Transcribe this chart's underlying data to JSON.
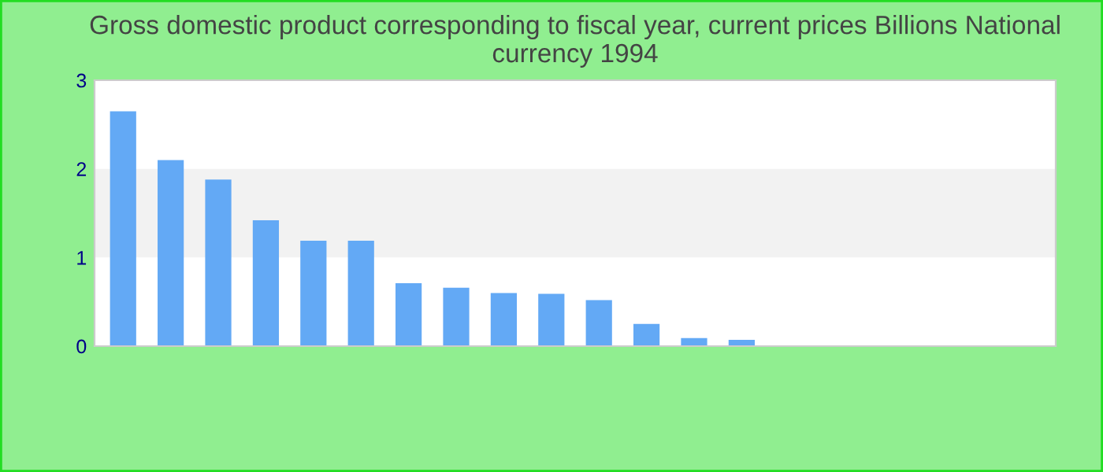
{
  "chart_data": {
    "type": "bar",
    "title": "Gross domestic product corresponding to fiscal year, current prices Billions National currency 1994",
    "categories": [
      null,
      null,
      null,
      null,
      null,
      null,
      null,
      null,
      null,
      null,
      null,
      null,
      null,
      null,
      null,
      null,
      null,
      null,
      null,
      null
    ],
    "values": [
      2.65,
      2.1,
      1.88,
      1.42,
      1.19,
      1.19,
      0.71,
      0.66,
      0.6,
      0.59,
      0.52,
      0.25,
      0.09,
      0.07,
      0,
      0,
      0,
      0,
      0,
      0
    ],
    "color": "#63a9f5",
    "ylim": [
      0,
      3
    ],
    "yticks": [
      0,
      1,
      2,
      3
    ],
    "bands": [
      {
        "axis": "y",
        "from": 1,
        "to": 2,
        "color": "#f2f2f2"
      }
    ],
    "grid": false,
    "legend": false
  }
}
